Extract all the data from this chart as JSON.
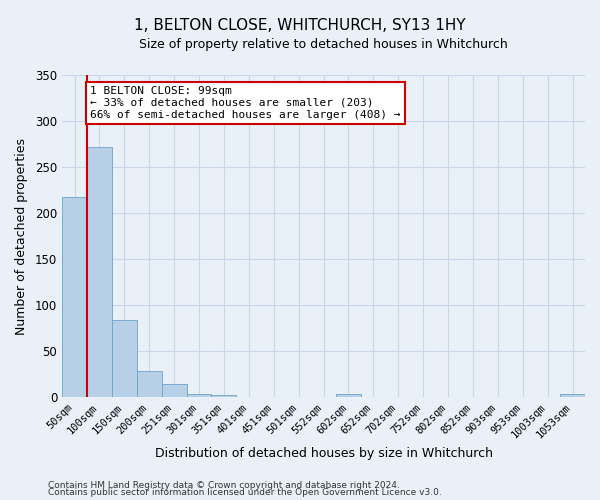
{
  "title": "1, BELTON CLOSE, WHITCHURCH, SY13 1HY",
  "subtitle": "Size of property relative to detached houses in Whitchurch",
  "xlabel": "Distribution of detached houses by size in Whitchurch",
  "ylabel": "Number of detached properties",
  "bar_labels": [
    "50sqm",
    "100sqm",
    "150sqm",
    "200sqm",
    "251sqm",
    "301sqm",
    "351sqm",
    "401sqm",
    "451sqm",
    "501sqm",
    "552sqm",
    "602sqm",
    "652sqm",
    "702sqm",
    "752sqm",
    "802sqm",
    "852sqm",
    "903sqm",
    "953sqm",
    "1003sqm",
    "1053sqm"
  ],
  "bar_values": [
    218,
    272,
    84,
    29,
    14,
    4,
    2,
    0,
    0,
    0,
    0,
    4,
    0,
    0,
    0,
    0,
    0,
    0,
    0,
    0,
    3
  ],
  "bar_color": "#b8cfe8",
  "bar_edge_color": "#6ba3cc",
  "grid_color": "#c8d8e8",
  "background_color": "#eaf0f8",
  "vline_x": 0.5,
  "vline_color": "#cc0000",
  "annotation_text": "1 BELTON CLOSE: 99sqm\n← 33% of detached houses are smaller (203)\n66% of semi-detached houses are larger (408) →",
  "annotation_box_color": "#ffffff",
  "annotation_box_edge": "#cc0000",
  "ylim": [
    0,
    350
  ],
  "yticks": [
    0,
    50,
    100,
    150,
    200,
    250,
    300,
    350
  ],
  "footer_line1": "Contains HM Land Registry data © Crown copyright and database right 2024.",
  "footer_line2": "Contains public sector information licensed under the Open Government Licence v3.0."
}
